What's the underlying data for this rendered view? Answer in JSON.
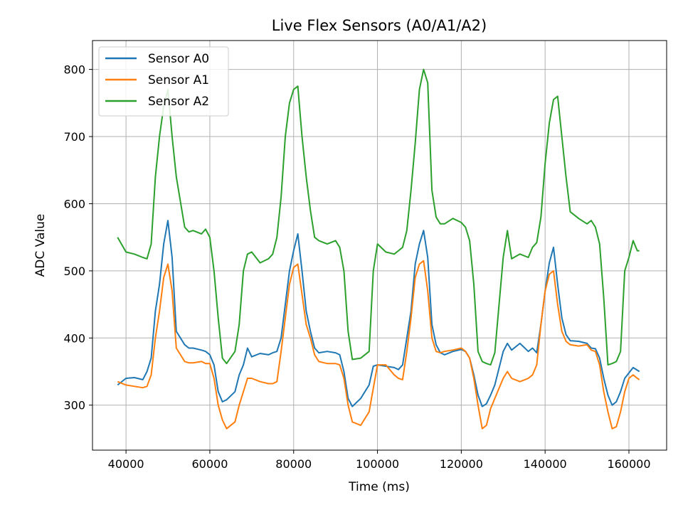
{
  "chart_data": {
    "type": "line",
    "title": "Live Flex Sensors (A0/A1/A2)",
    "xlabel": "Time (ms)",
    "ylabel": "ADC Value",
    "xlim": [
      32000,
      169000
    ],
    "ylim": [
      233,
      843
    ],
    "xticks": [
      40000,
      60000,
      80000,
      100000,
      120000,
      140000,
      160000
    ],
    "yticks": [
      300,
      400,
      500,
      600,
      700,
      800
    ],
    "grid": true,
    "legend_position": "top-left",
    "x": [
      38000,
      40000,
      42000,
      44000,
      45000,
      46000,
      47000,
      48000,
      49000,
      50000,
      51000,
      52000,
      54000,
      55000,
      56000,
      58000,
      59000,
      60000,
      61000,
      62000,
      63000,
      64000,
      66000,
      67000,
      68000,
      69000,
      70000,
      72000,
      74000,
      75000,
      76000,
      77000,
      78000,
      79000,
      80000,
      81000,
      82000,
      83000,
      84000,
      85000,
      86000,
      88000,
      90000,
      91000,
      92000,
      93000,
      94000,
      96000,
      98000,
      99000,
      100000,
      102000,
      104000,
      105000,
      106000,
      107000,
      108000,
      109000,
      110000,
      111000,
      112000,
      113000,
      114000,
      115000,
      116000,
      118000,
      120000,
      121000,
      122000,
      123000,
      124000,
      125000,
      126000,
      127000,
      128000,
      130000,
      131000,
      132000,
      134000,
      136000,
      137000,
      138000,
      139000,
      140000,
      141000,
      142000,
      143000,
      144000,
      145000,
      146000,
      148000,
      150000,
      151000,
      152000,
      153000,
      154000,
      155000,
      156000,
      157000,
      158000,
      159000,
      160000,
      161000,
      162000,
      162500
    ],
    "series": [
      {
        "name": "Sensor A0",
        "color": "#1f77b4",
        "values": [
          330,
          340,
          341,
          338,
          350,
          370,
          440,
          480,
          540,
          575,
          520,
          410,
          390,
          385,
          385,
          382,
          380,
          375,
          360,
          320,
          305,
          308,
          320,
          345,
          360,
          385,
          372,
          377,
          375,
          378,
          380,
          400,
          450,
          500,
          530,
          555,
          500,
          440,
          410,
          385,
          378,
          380,
          378,
          375,
          350,
          310,
          298,
          310,
          330,
          358,
          360,
          358,
          356,
          353,
          360,
          400,
          440,
          510,
          540,
          560,
          520,
          420,
          390,
          378,
          375,
          380,
          383,
          380,
          370,
          345,
          315,
          298,
          302,
          315,
          330,
          380,
          392,
          382,
          392,
          380,
          385,
          378,
          420,
          470,
          512,
          535,
          480,
          430,
          405,
          396,
          395,
          392,
          385,
          384,
          370,
          340,
          315,
          300,
          305,
          320,
          340,
          348,
          356,
          352,
          350
        ]
      },
      {
        "name": "Sensor A1",
        "color": "#ff7f0e",
        "values": [
          335,
          330,
          328,
          326,
          328,
          345,
          400,
          440,
          490,
          510,
          470,
          385,
          365,
          363,
          363,
          365,
          362,
          362,
          340,
          300,
          278,
          265,
          275,
          300,
          320,
          340,
          340,
          335,
          332,
          332,
          335,
          380,
          430,
          480,
          505,
          510,
          465,
          420,
          400,
          375,
          365,
          362,
          362,
          360,
          340,
          300,
          275,
          270,
          290,
          325,
          360,
          360,
          345,
          340,
          338,
          380,
          430,
          490,
          510,
          515,
          470,
          400,
          380,
          378,
          380,
          382,
          385,
          380,
          370,
          340,
          300,
          265,
          270,
          295,
          310,
          340,
          350,
          340,
          335,
          340,
          345,
          360,
          420,
          470,
          495,
          500,
          450,
          410,
          395,
          390,
          388,
          390,
          382,
          380,
          360,
          320,
          290,
          265,
          268,
          290,
          320,
          340,
          345,
          340,
          338
        ]
      },
      {
        "name": "Sensor A2",
        "color": "#2ca02c",
        "values": [
          550,
          528,
          525,
          520,
          518,
          540,
          640,
          700,
          745,
          770,
          700,
          640,
          565,
          558,
          560,
          555,
          562,
          550,
          500,
          430,
          370,
          362,
          380,
          420,
          500,
          525,
          528,
          512,
          518,
          525,
          550,
          610,
          700,
          750,
          770,
          775,
          700,
          640,
          590,
          550,
          545,
          540,
          545,
          535,
          500,
          410,
          368,
          370,
          380,
          500,
          540,
          528,
          525,
          530,
          535,
          560,
          620,
          690,
          770,
          800,
          780,
          620,
          580,
          570,
          570,
          578,
          572,
          565,
          545,
          480,
          380,
          365,
          362,
          360,
          378,
          520,
          560,
          518,
          525,
          520,
          535,
          542,
          580,
          660,
          720,
          755,
          760,
          700,
          640,
          588,
          578,
          570,
          575,
          565,
          540,
          460,
          360,
          362,
          365,
          380,
          500,
          520,
          545,
          530,
          530
        ]
      }
    ]
  }
}
